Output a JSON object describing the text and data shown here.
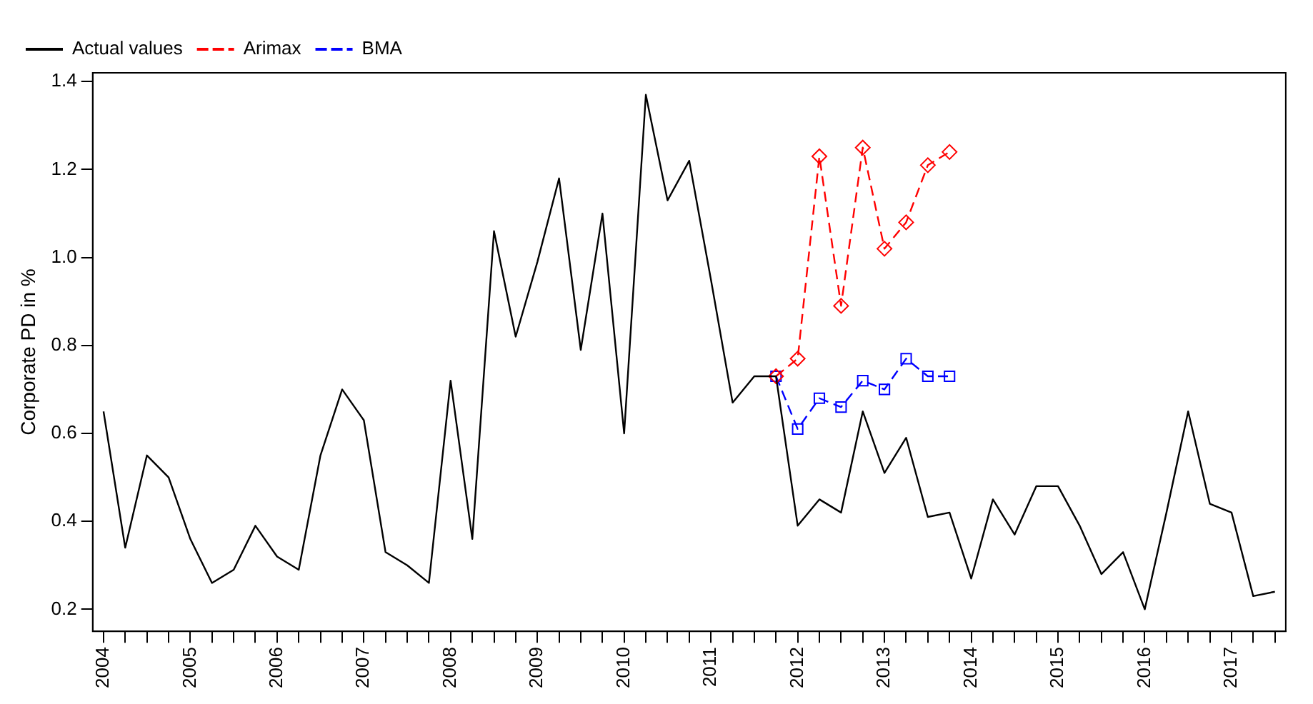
{
  "chart_data": {
    "type": "line",
    "ylabel": "Corporate PD in %",
    "categories": [
      "2004",
      null,
      null,
      null,
      "2005",
      null,
      null,
      null,
      "2006",
      null,
      null,
      null,
      "2007",
      null,
      null,
      null,
      "2008",
      null,
      null,
      null,
      "2009",
      null,
      null,
      null,
      "2010",
      null,
      null,
      null,
      "2011",
      null,
      null,
      null,
      "2012",
      null,
      null,
      null,
      "2013",
      null,
      null,
      null,
      "2014",
      null,
      null,
      null,
      "2015",
      null,
      null,
      null,
      "2016",
      null,
      null,
      null,
      "2017",
      null,
      null
    ],
    "series": [
      {
        "name": "Actual values",
        "color": "#000000",
        "line_style": "solid",
        "marker": "none",
        "values": [
          0.65,
          0.34,
          0.55,
          0.5,
          0.36,
          0.26,
          0.29,
          0.39,
          0.32,
          0.29,
          0.55,
          0.7,
          0.63,
          0.33,
          0.3,
          0.26,
          0.72,
          0.36,
          1.06,
          0.82,
          0.99,
          1.18,
          0.79,
          1.1,
          0.6,
          1.37,
          1.13,
          1.22,
          0.95,
          0.67,
          0.73,
          0.73,
          0.39,
          0.45,
          0.42,
          0.65,
          0.51,
          0.59,
          0.41,
          0.42,
          0.27,
          0.45,
          0.37,
          0.48,
          0.48,
          0.39,
          0.28,
          0.33,
          0.2,
          0.42,
          0.65,
          0.44,
          0.42,
          0.23,
          0.24
        ]
      },
      {
        "name": "Arimax",
        "color": "#ff0000",
        "line_style": "dashed",
        "marker": "diamond",
        "values": [
          null,
          null,
          null,
          null,
          null,
          null,
          null,
          null,
          null,
          null,
          null,
          null,
          null,
          null,
          null,
          null,
          null,
          null,
          null,
          null,
          null,
          null,
          null,
          null,
          null,
          null,
          null,
          null,
          null,
          null,
          null,
          0.73,
          0.77,
          1.23,
          0.89,
          1.25,
          1.02,
          1.08,
          1.21,
          1.24,
          null,
          null,
          null,
          null,
          null,
          null,
          null,
          null,
          null,
          null,
          null,
          null,
          null,
          null,
          null
        ]
      },
      {
        "name": "BMA",
        "color": "#0000ff",
        "line_style": "dashed",
        "marker": "square",
        "values": [
          null,
          null,
          null,
          null,
          null,
          null,
          null,
          null,
          null,
          null,
          null,
          null,
          null,
          null,
          null,
          null,
          null,
          null,
          null,
          null,
          null,
          null,
          null,
          null,
          null,
          null,
          null,
          null,
          null,
          null,
          null,
          0.73,
          0.61,
          0.68,
          0.66,
          0.72,
          0.7,
          0.77,
          0.73,
          0.73,
          null,
          null,
          null,
          null,
          null,
          null,
          null,
          null,
          null,
          null,
          null,
          null,
          null,
          null,
          null
        ]
      }
    ],
    "ylim": [
      0.15,
      1.42
    ],
    "yticks": [
      0.2,
      0.4,
      0.6,
      0.8,
      {
        "value": 1,
        "label": "1.0"
      },
      1.2,
      1.4
    ],
    "grid": false,
    "legend": "top left"
  }
}
